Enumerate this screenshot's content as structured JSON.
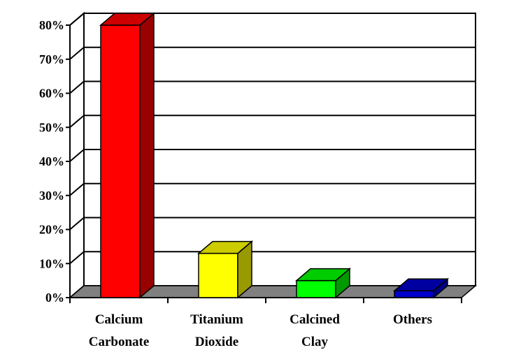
{
  "chart_data": {
    "type": "bar",
    "style": "3d-column",
    "categories": [
      {
        "lines": [
          "Calcium",
          "Carbonate"
        ]
      },
      {
        "lines": [
          "Titanium",
          "Dioxide"
        ]
      },
      {
        "lines": [
          "Calcined",
          "Clay"
        ]
      },
      {
        "lines": [
          "Others"
        ]
      }
    ],
    "values": [
      80,
      13,
      5,
      2
    ],
    "unit": "%",
    "ylim": [
      0,
      80
    ],
    "yticks": [
      "0%",
      "10%",
      "20%",
      "30%",
      "40%",
      "50%",
      "60%",
      "70%",
      "80%"
    ],
    "grid": true,
    "legend": "none",
    "colors": {
      "bars": [
        "#ff0000",
        "#ffff00",
        "#00ff00",
        "#0000cc"
      ],
      "bar_sides": [
        "#990000",
        "#999900",
        "#009900",
        "#000080"
      ],
      "bar_tops": [
        "#cc0000",
        "#cccc00",
        "#00cc00",
        "#0000a0"
      ],
      "floor": "#808080",
      "grid": "#000000"
    }
  }
}
